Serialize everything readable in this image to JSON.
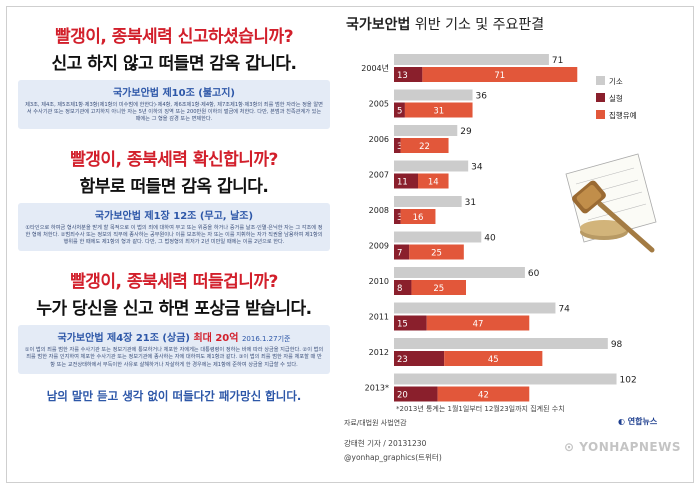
{
  "poster": {
    "sections": [
      {
        "question": "빨갱이, 종북세력 신고하셨습니까?",
        "statement": "신고 하지 않고 떠들면 감옥 갑니다.",
        "law_title": "국가보안법 제10조 (불고지)",
        "law_title_highlight": "",
        "law_date": "",
        "law_text": "제3조, 제4조, 제5조제1항·제3항(제1항의 미수범에 한한다)·제4항, 제6조제1항·제4항, 제7조제1항·제3항의 죄를 범한 자라는 정을 알면서 수사기관 또는 정보기관에 고지하지 아니한 자는 5년 이하의 징역 또는 200만원 이하의 벌금에 처한다. 다만, 본범과 친족관계가 있는 때에는 그 형을 감경 또는 면제한다."
      },
      {
        "question": "빨갱이, 종북세력 확신합니까?",
        "statement": "함부로 떠들면 감옥 갑니다.",
        "law_title": "국가보안법 제1장 12조 (무고, 날조)",
        "law_title_highlight": "",
        "law_date": "",
        "law_text": "①타인으로 하여금 형사처분을 받게 할 목적으로 이 법의 죄에 대하여 무고 또는 위증을 하거나 증거를 날조·인멸·은닉한 자는 그 각조에 정한 형에 처한다. ②범죄수사 또는 정보의 직무에 종사하는 공무원이나 이를 보조하는 자 또는 이를 지휘하는 자가 직권을 남용하여 제1항의 행위를 한 때에도 제1항의 형과 같다. 다만, 그 법정형의 최저가 2년 미만일 때에는 이를 2년으로 한다."
      },
      {
        "question": "빨갱이, 종북세력 떠들겁니까?",
        "statement": "누가 당신을 신고 하면 포상금 받습니다.",
        "law_title": "국가보안법 제4장 21조 (상금)",
        "law_title_highlight": "최대 20억",
        "law_date": "2016.1.27기준",
        "law_text": "①이 법의 죄를 범한 자를 수사기관 또는 정보기관에 통보하거나 체포한 자에게는 대통령령이 정하는 바에 따라 상금을 지급한다. ②이 법의 죄를 범한 자를 인지하여 체포한 수사기관 또는 정보기관에 종사하는 자에 대하여도 제1항과 같다. ③이 법의 죄를 범한 자를 체포할 때 반항 또는 교전상태하에서 부득이한 사유로 살해하거나 자살하게 한 경우에는 제1항에 준하여 상금을 지급할 수 있다."
      }
    ],
    "slogan": "남의 말만 듣고 생각 없이 떠들다간 패가망신 합니다."
  },
  "chart": {
    "title_bold": "국가보안법",
    "title_rest": " 위반 기소 및 주요판결",
    "note": "*2013년 통계는 1월1일부터 12월23일까지 집계된 수치",
    "source": "자료/대법원 사법연감",
    "credit_reporter": "강태현 기자 / 20131230",
    "credit_handle": "@yonhap_graphics(트위터)",
    "agency": "연합뉴스",
    "watermark": "YONHAPNEWS",
    "colors": {
      "indictment": "#cccccc",
      "prison": "#8a1f2c",
      "suspended": "#e2573a"
    }
  },
  "chart_data": {
    "type": "bar",
    "orientation": "horizontal",
    "title": "국가보안법 위반 기소 및 주요판결",
    "categories": [
      "2004년",
      "2005",
      "2006",
      "2007",
      "2008",
      "2009",
      "2010",
      "2011",
      "2012",
      "2013*"
    ],
    "series": [
      {
        "name": "기소",
        "values": [
          71,
          36,
          29,
          34,
          31,
          40,
          60,
          74,
          98,
          102
        ]
      },
      {
        "name": "실형",
        "values": [
          13,
          5,
          3,
          11,
          3,
          7,
          8,
          15,
          23,
          20
        ]
      },
      {
        "name": "집행유예",
        "values": [
          71,
          31,
          22,
          14,
          16,
          25,
          25,
          47,
          45,
          42
        ]
      }
    ],
    "legend_position": "top-right",
    "xlim": [
      0,
      110
    ]
  }
}
